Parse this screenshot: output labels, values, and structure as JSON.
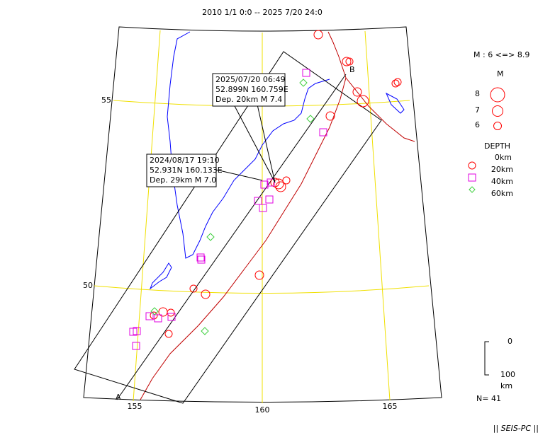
{
  "title": "2010 1/1 0:0 -- 2025 7/20 24:0",
  "map": {
    "lat_labels": [
      "55",
      "50"
    ],
    "lon_labels": [
      "155",
      "160",
      "165"
    ],
    "section_ends": [
      "A",
      "B"
    ],
    "annotations": [
      {
        "lines": [
          "2025/07/20 06:49",
          "52.899N  160.759E",
          "Dep. 20km   M 7.4"
        ]
      },
      {
        "lines": [
          "2024/08/17 19:10",
          "52.931N  160.133E",
          "Dep. 29km   M 7.0"
        ]
      }
    ]
  },
  "legend": {
    "magnitude_range": "M : 6 <=> 8.9",
    "magnitude_title": "M",
    "magnitudes": [
      "8",
      "7",
      "6"
    ],
    "depth_title": "DEPTH",
    "depths": [
      "0km",
      "20km",
      "40km",
      "60km"
    ],
    "scale": [
      "0",
      "100",
      "km"
    ],
    "count": "N= 41"
  },
  "footer": "|| SEIS-PC ||"
}
